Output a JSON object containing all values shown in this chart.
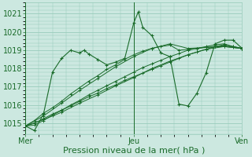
{
  "bg_color": "#cce8e0",
  "grid_color": "#99ccbb",
  "line_color": "#1a6b2a",
  "marker_color": "#1a6b2a",
  "xlabel": "Pression niveau de la mer( hPa )",
  "xlabel_fontsize": 8,
  "tick_fontsize": 7,
  "ylim": [
    1014.4,
    1021.6
  ],
  "yticks": [
    1015,
    1016,
    1017,
    1018,
    1019,
    1020,
    1021
  ],
  "xtick_labels": [
    "Mer",
    "Jeu",
    "Ven"
  ],
  "xtick_positions": [
    0,
    48,
    96
  ],
  "total_x": 96,
  "series": [
    [
      0,
      1014.85,
      4,
      1015.15,
      8,
      1015.55,
      12,
      1015.85,
      16,
      1016.2,
      20,
      1016.6,
      24,
      1016.95,
      28,
      1017.3,
      32,
      1017.6,
      36,
      1017.95,
      40,
      1018.2,
      44,
      1018.5,
      48,
      1018.75,
      52,
      1018.95,
      56,
      1019.1,
      60,
      1019.2,
      64,
      1019.28,
      68,
      1019.0,
      72,
      1019.05,
      76,
      1019.1,
      80,
      1019.15,
      84,
      1019.2,
      88,
      1019.25,
      92,
      1019.15,
      96,
      1019.1
    ],
    [
      0,
      1014.85,
      8,
      1015.4,
      16,
      1016.1,
      24,
      1016.8,
      32,
      1017.45,
      40,
      1018.1,
      48,
      1018.65,
      56,
      1019.1,
      64,
      1019.35,
      72,
      1019.1,
      80,
      1019.15,
      88,
      1019.2,
      96,
      1019.1
    ],
    [
      0,
      1014.85,
      4,
      1014.9,
      8,
      1015.15,
      12,
      1015.45,
      16,
      1015.7,
      20,
      1016.0,
      24,
      1016.25,
      28,
      1016.55,
      32,
      1016.8,
      36,
      1017.05,
      40,
      1017.3,
      44,
      1017.55,
      48,
      1017.8,
      52,
      1018.05,
      56,
      1018.25,
      60,
      1018.45,
      64,
      1018.65,
      68,
      1018.82,
      72,
      1019.0,
      76,
      1019.1,
      80,
      1019.2,
      84,
      1019.3,
      88,
      1019.35,
      92,
      1019.2,
      96,
      1019.1
    ],
    [
      0,
      1014.85,
      4,
      1015.0,
      8,
      1015.25,
      12,
      1015.5,
      16,
      1015.72,
      20,
      1015.95,
      24,
      1016.2,
      28,
      1016.45,
      32,
      1016.65,
      36,
      1016.9,
      40,
      1017.1,
      44,
      1017.35,
      48,
      1017.55,
      52,
      1017.75,
      56,
      1017.95,
      60,
      1018.15,
      64,
      1018.35,
      68,
      1018.55,
      72,
      1018.75,
      76,
      1018.9,
      80,
      1019.05,
      84,
      1019.2,
      88,
      1019.3,
      92,
      1019.2,
      96,
      1019.1
    ],
    [
      0,
      1014.85,
      8,
      1015.2,
      16,
      1015.6,
      24,
      1016.1,
      32,
      1016.55,
      40,
      1017.05,
      48,
      1017.5,
      56,
      1018.0,
      64,
      1018.4,
      72,
      1018.75,
      80,
      1019.05,
      88,
      1019.2,
      96,
      1019.1
    ]
  ],
  "volatile_series": [
    [
      0,
      1014.85,
      4,
      1014.6,
      8,
      1015.5,
      12,
      1017.8,
      16,
      1018.55,
      20,
      1019.0,
      24,
      1018.85,
      26,
      1019.0,
      28,
      1018.8,
      32,
      1018.5,
      36,
      1018.2,
      40,
      1018.35,
      44,
      1018.55,
      48,
      1020.5,
      50,
      1021.1,
      52,
      1020.25,
      56,
      1019.8,
      60,
      1018.85,
      64,
      1018.65,
      68,
      1016.05,
      72,
      1015.95,
      76,
      1016.65,
      80,
      1017.75,
      84,
      1019.35,
      88,
      1019.55,
      92,
      1019.55,
      96,
      1019.1
    ]
  ]
}
